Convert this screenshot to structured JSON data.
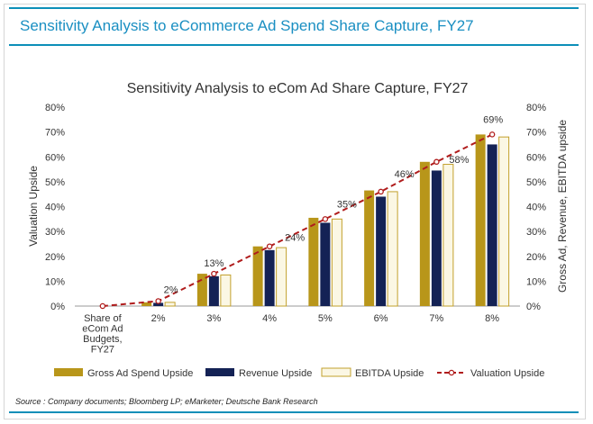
{
  "header": {
    "title": "Sensitivity Analysis to eCommerce Ad Spend Share Capture, FY27"
  },
  "source_note": "Source : Company documents; Bloomberg LP; eMarketer; Deutsche Bank Research",
  "colors": {
    "accent": "#0c8fb8",
    "header_text": "#1a8fc2",
    "gross": "#b8961a",
    "revenue": "#142255",
    "ebitda_fill": "#fbf7e4",
    "ebitda_stroke": "#c2a02c",
    "valuation": "#b01c1c"
  },
  "chart_data": {
    "type": "bar",
    "title": "Sensitivity Analysis to eCom Ad Share Capture, FY27",
    "ylabel": "Valuation Upside",
    "y2label": "Gross Ad, Revenue, EBITDA upside",
    "xlabel": "",
    "ylim": [
      0,
      80
    ],
    "y2lim": [
      0,
      80
    ],
    "yticks": [
      0,
      10,
      20,
      30,
      40,
      50,
      60,
      70,
      80
    ],
    "ytick_labels": [
      "0%",
      "10%",
      "20%",
      "30%",
      "40%",
      "50%",
      "60%",
      "70%",
      "80%"
    ],
    "y2tick_labels": [
      "0%",
      "10%",
      "20%",
      "30%",
      "40%",
      "50%",
      "60%",
      "70%",
      "80%"
    ],
    "categories": [
      "Share of eCom Ad Budgets, FY27",
      "2%",
      "3%",
      "4%",
      "5%",
      "6%",
      "7%",
      "8%"
    ],
    "category_lines": [
      [
        "Share of",
        "eCom Ad",
        "Budgets,",
        "FY27"
      ],
      [
        "2%"
      ],
      [
        "3%"
      ],
      [
        "4%"
      ],
      [
        "5%"
      ],
      [
        "6%"
      ],
      [
        "7%"
      ],
      [
        "8%"
      ]
    ],
    "series": [
      {
        "name": "Gross Ad Spend Upside",
        "kind": "bar",
        "axis": "right",
        "values": [
          0,
          1.5,
          13,
          24,
          35.5,
          46.5,
          58,
          69
        ]
      },
      {
        "name": "Revenue Upside",
        "kind": "bar",
        "axis": "right",
        "values": [
          0,
          1.3,
          12,
          22.5,
          33.5,
          44,
          54.5,
          65
        ]
      },
      {
        "name": "EBITDA Upside",
        "kind": "bar",
        "axis": "right",
        "values": [
          0,
          1.5,
          12.5,
          23.5,
          35,
          46,
          57,
          68
        ]
      },
      {
        "name": "Valuation Upside",
        "kind": "line",
        "axis": "left",
        "values": [
          0,
          2,
          13,
          24,
          35,
          46,
          58,
          69
        ]
      }
    ],
    "data_labels": [
      "",
      "2%",
      "13%",
      "24%",
      "35%",
      "46%",
      "58%",
      "69%"
    ],
    "legend": {
      "position": "bottom",
      "entries": [
        "Gross Ad Spend Upside",
        "Revenue Upside",
        "EBITDA Upside",
        "Valuation Upside"
      ]
    },
    "grid": false
  }
}
